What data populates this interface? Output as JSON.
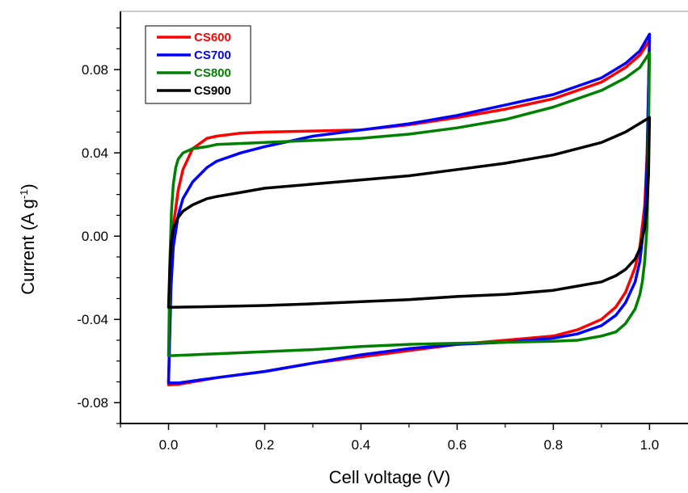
{
  "chart_data": {
    "type": "line",
    "title": "",
    "xlabel": "Cell voltage (V)",
    "ylabel": "Current (A g",
    "ylabel_sup": "-1",
    "ylabel_close": ")",
    "xlim": [
      -0.1,
      1.08
    ],
    "ylim": [
      -0.09,
      0.108
    ],
    "xticks": [
      0.0,
      0.2,
      0.4,
      0.6,
      0.8,
      1.0
    ],
    "xtick_labels": [
      "0.0",
      "0.2",
      "0.4",
      "0.6",
      "0.8",
      "1.0"
    ],
    "yticks": [
      -0.08,
      -0.04,
      0.0,
      0.04,
      0.08
    ],
    "ytick_labels": [
      "-0.08",
      "-0.04",
      "0.00",
      "0.04",
      "0.08"
    ],
    "grid": false,
    "legend_position": "top-left",
    "series": [
      {
        "name": "CS600",
        "color": "#ff0000",
        "upper": {
          "x": [
            0.0,
            0.005,
            0.01,
            0.02,
            0.03,
            0.05,
            0.08,
            0.1,
            0.15,
            0.2,
            0.3,
            0.4,
            0.5,
            0.6,
            0.7,
            0.8,
            0.9,
            0.95,
            0.98,
            1.0
          ],
          "y": [
            -0.07,
            -0.02,
            0.005,
            0.022,
            0.032,
            0.042,
            0.047,
            0.048,
            0.0495,
            0.05,
            0.0505,
            0.051,
            0.0535,
            0.057,
            0.061,
            0.066,
            0.074,
            0.081,
            0.087,
            0.094
          ]
        },
        "lower": {
          "x": [
            1.0,
            0.995,
            0.99,
            0.98,
            0.97,
            0.95,
            0.93,
            0.9,
            0.85,
            0.8,
            0.7,
            0.6,
            0.5,
            0.4,
            0.3,
            0.2,
            0.1,
            0.02,
            0.0
          ],
          "y": [
            0.094,
            0.04,
            0.015,
            -0.005,
            -0.015,
            -0.027,
            -0.034,
            -0.04,
            -0.045,
            -0.048,
            -0.05,
            -0.052,
            -0.055,
            -0.058,
            -0.061,
            -0.065,
            -0.068,
            -0.0712,
            -0.0715
          ]
        }
      },
      {
        "name": "CS700",
        "color": "#0000ff",
        "upper": {
          "x": [
            0.0,
            0.005,
            0.01,
            0.02,
            0.03,
            0.05,
            0.08,
            0.1,
            0.15,
            0.2,
            0.3,
            0.4,
            0.5,
            0.6,
            0.7,
            0.8,
            0.9,
            0.95,
            0.98,
            1.0
          ],
          "y": [
            -0.07,
            -0.025,
            -0.005,
            0.01,
            0.018,
            0.026,
            0.033,
            0.036,
            0.04,
            0.043,
            0.048,
            0.051,
            0.054,
            0.058,
            0.063,
            0.068,
            0.076,
            0.083,
            0.089,
            0.097
          ]
        },
        "lower": {
          "x": [
            1.0,
            0.995,
            0.99,
            0.98,
            0.97,
            0.95,
            0.93,
            0.9,
            0.85,
            0.8,
            0.7,
            0.6,
            0.5,
            0.4,
            0.3,
            0.2,
            0.1,
            0.02,
            0.0
          ],
          "y": [
            0.097,
            0.035,
            0.008,
            -0.012,
            -0.022,
            -0.032,
            -0.038,
            -0.043,
            -0.047,
            -0.049,
            -0.051,
            -0.052,
            -0.054,
            -0.057,
            -0.061,
            -0.065,
            -0.068,
            -0.0705,
            -0.0705
          ]
        }
      },
      {
        "name": "CS800",
        "color": "#008000",
        "upper": {
          "x": [
            0.0,
            0.003,
            0.006,
            0.01,
            0.015,
            0.02,
            0.03,
            0.05,
            0.08,
            0.1,
            0.2,
            0.3,
            0.4,
            0.5,
            0.6,
            0.7,
            0.8,
            0.9,
            0.95,
            0.98,
            1.0
          ],
          "y": [
            -0.057,
            -0.01,
            0.012,
            0.025,
            0.033,
            0.037,
            0.04,
            0.042,
            0.043,
            0.044,
            0.045,
            0.046,
            0.047,
            0.049,
            0.052,
            0.056,
            0.062,
            0.07,
            0.076,
            0.081,
            0.088
          ]
        },
        "lower": {
          "x": [
            1.0,
            0.997,
            0.995,
            0.99,
            0.985,
            0.98,
            0.97,
            0.95,
            0.93,
            0.9,
            0.85,
            0.8,
            0.7,
            0.6,
            0.5,
            0.4,
            0.3,
            0.2,
            0.1,
            0.05,
            0.0
          ],
          "y": [
            0.088,
            0.03,
            0.005,
            -0.012,
            -0.022,
            -0.028,
            -0.035,
            -0.042,
            -0.046,
            -0.048,
            -0.05,
            -0.0505,
            -0.051,
            -0.0515,
            -0.052,
            -0.053,
            -0.0545,
            -0.0555,
            -0.0565,
            -0.057,
            -0.0575
          ]
        }
      },
      {
        "name": "CS900",
        "color": "#000000",
        "upper": {
          "x": [
            0.0,
            0.003,
            0.006,
            0.01,
            0.02,
            0.03,
            0.05,
            0.08,
            0.1,
            0.15,
            0.2,
            0.3,
            0.4,
            0.5,
            0.6,
            0.7,
            0.8,
            0.9,
            0.95,
            1.0
          ],
          "y": [
            -0.034,
            -0.012,
            -0.002,
            0.004,
            0.009,
            0.012,
            0.015,
            0.018,
            0.019,
            0.021,
            0.023,
            0.025,
            0.027,
            0.029,
            0.032,
            0.035,
            0.039,
            0.045,
            0.05,
            0.057
          ]
        },
        "lower": {
          "x": [
            1.0,
            0.998,
            0.995,
            0.99,
            0.98,
            0.97,
            0.95,
            0.93,
            0.9,
            0.85,
            0.8,
            0.7,
            0.6,
            0.5,
            0.4,
            0.3,
            0.2,
            0.1,
            0.0
          ],
          "y": [
            0.057,
            0.03,
            0.015,
            0.004,
            -0.006,
            -0.011,
            -0.016,
            -0.019,
            -0.022,
            -0.024,
            -0.026,
            -0.028,
            -0.029,
            -0.0305,
            -0.0315,
            -0.0325,
            -0.0333,
            -0.0338,
            -0.0342
          ]
        }
      }
    ]
  }
}
